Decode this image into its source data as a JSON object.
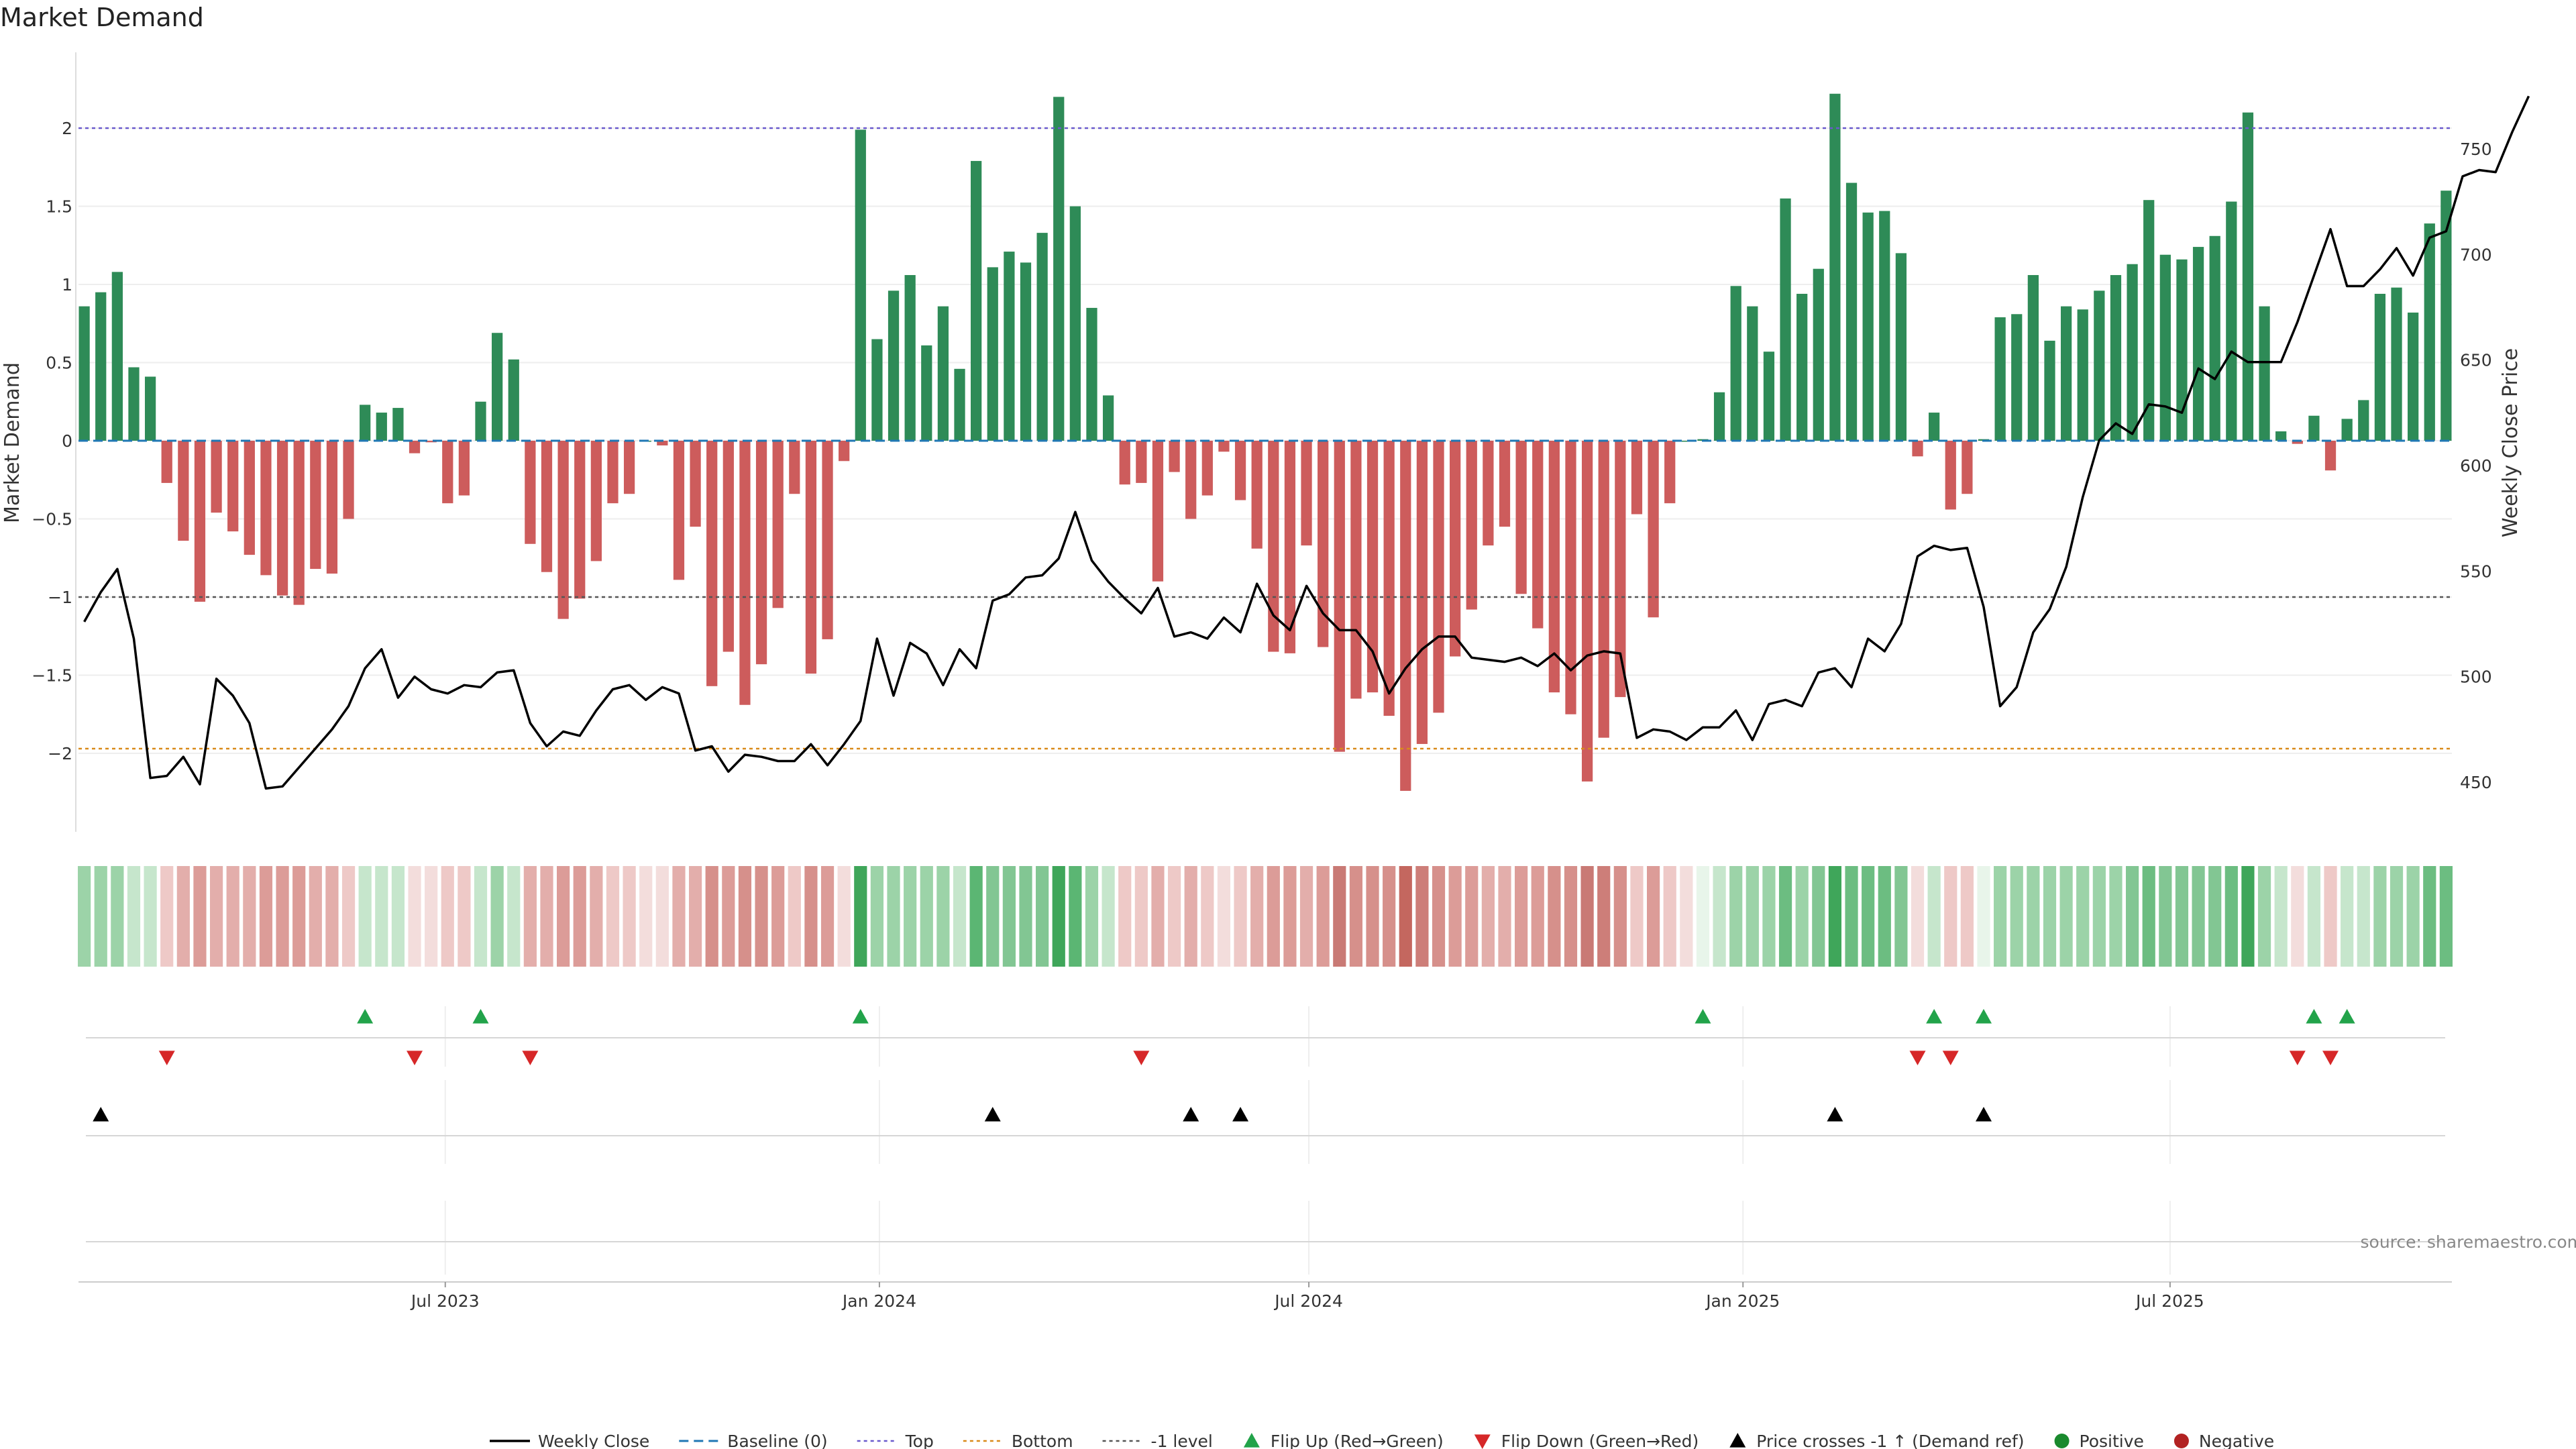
{
  "title": "Market Demand",
  "source": "source: sharemaestro.com",
  "chart_data": {
    "type": "bar",
    "title": "Market Demand",
    "ylabel": "Market Demand",
    "ylabel_right": "Weekly Close Price",
    "ylim": [
      -2.5,
      2.5
    ],
    "ylim_right": [
      430,
      780
    ],
    "yticks": [
      2,
      1.5,
      1,
      0.5,
      0,
      -0.5,
      -1,
      -1.5,
      -2
    ],
    "ytick_labels": [
      "2",
      "1.5",
      "1",
      "0.5",
      "0",
      "−0.5",
      "−1",
      "−1.5",
      "−2"
    ],
    "yticks_right": [
      750,
      700,
      650,
      600,
      550,
      500,
      450
    ],
    "x_start": "2023-01-29",
    "x_step_days": 7,
    "xtick_labels": [
      {
        "date": "2023-07-01",
        "label": "Jul 2023"
      },
      {
        "date": "2024-01-01",
        "label": "Jan 2024"
      },
      {
        "date": "2024-07-01",
        "label": "Jul 2024"
      },
      {
        "date": "2025-01-01",
        "label": "Jan 2025"
      },
      {
        "date": "2025-07-01",
        "label": "Jul 2025"
      }
    ],
    "reference_lines": {
      "top": 2,
      "bottom": -1.97,
      "minus_one": -1,
      "baseline": 0
    },
    "colors": {
      "positive": "#2e8b57",
      "negative": "#cd5c5c",
      "close": "#000000",
      "top": "#6a5acd",
      "bottom": "#d98a1a",
      "minus_one": "#555555",
      "baseline": "#1f77b4",
      "flip_up": "#22a34a",
      "flip_down": "#d62728",
      "cross": "#000000",
      "pos_marker": "#1a8a2e",
      "neg_marker": "#b22222"
    },
    "demand": [
      0.86,
      0.95,
      1.08,
      0.47,
      0.41,
      -0.27,
      -0.64,
      -1.03,
      -0.46,
      -0.58,
      -0.73,
      -0.86,
      -0.99,
      -1.05,
      -0.82,
      -0.85,
      -0.5,
      0.23,
      0.18,
      0.21,
      -0.08,
      -0.01,
      -0.4,
      -0.35,
      0.25,
      0.69,
      0.52,
      -0.66,
      -0.84,
      -1.14,
      -1.01,
      -0.77,
      -0.4,
      -0.34,
      0,
      -0.03,
      -0.89,
      -0.55,
      -1.57,
      -1.35,
      -1.69,
      -1.43,
      -1.07,
      -0.34,
      -1.49,
      -1.27,
      -0.13,
      1.99,
      0.65,
      0.96,
      1.06,
      0.61,
      0.86,
      0.46,
      1.79,
      1.11,
      1.21,
      1.14,
      1.33,
      2.2,
      1.5,
      0.85,
      0.29,
      -0.28,
      -0.27,
      -0.9,
      -0.2,
      -0.5,
      -0.35,
      -0.07,
      -0.38,
      -0.69,
      -1.35,
      -1.36,
      -0.67,
      -1.32,
      -1.99,
      -1.65,
      -1.61,
      -1.76,
      -2.24,
      -1.94,
      -1.74,
      -1.38,
      -1.08,
      -0.67,
      -0.55,
      -0.98,
      -1.2,
      -1.61,
      -1.75,
      -2.18,
      -1.9,
      -1.64,
      -0.47,
      -1.13,
      -0.4,
      0,
      0.01,
      0.31,
      0.99,
      0.86,
      0.57,
      1.55,
      0.94,
      1.1,
      2.22,
      1.65,
      1.46,
      1.47,
      1.2,
      -0.1,
      0.18,
      -0.44,
      -0.34,
      0.01,
      0.79,
      0.81,
      1.06,
      0.64,
      0.86,
      0.84,
      0.96,
      1.06,
      1.13,
      1.54,
      1.19,
      1.16,
      1.24,
      1.31,
      1.53,
      2.1,
      0.86,
      0.06,
      -0.02,
      0.16,
      -0.19,
      0.14,
      0.26,
      0.94,
      0.98,
      0.82,
      1.39,
      1.6
    ],
    "close": [
      526,
      540,
      551,
      518,
      452,
      453,
      462,
      449,
      499,
      491,
      478,
      447,
      448,
      457,
      466,
      475,
      486,
      504,
      513,
      490,
      500,
      494,
      492,
      496,
      495,
      502,
      503,
      478,
      467,
      474,
      472,
      484,
      494,
      496,
      489,
      495,
      492,
      465,
      467,
      455,
      463,
      462,
      460,
      460,
      468,
      458,
      468,
      479,
      518,
      491,
      516,
      511,
      496,
      513,
      504,
      536,
      539,
      547,
      548,
      556,
      578,
      555,
      545,
      537,
      530,
      542,
      519,
      521,
      518,
      528,
      521,
      544,
      529,
      522,
      543,
      530,
      522,
      522,
      512,
      492,
      504,
      513,
      519,
      519,
      509,
      508,
      507,
      509,
      505,
      511,
      503,
      510,
      512,
      511,
      471,
      475,
      474,
      470,
      476,
      476,
      484,
      470,
      487,
      489,
      486,
      502,
      504,
      495,
      518,
      512,
      525,
      557,
      562,
      560,
      561,
      533,
      486,
      495,
      521,
      532,
      552,
      585,
      612,
      620,
      615,
      629,
      628,
      625,
      646,
      641,
      654,
      649,
      649,
      649,
      668,
      690,
      712,
      685,
      685,
      693,
      703,
      690,
      708,
      711,
      737,
      740,
      739,
      758,
      775
    ],
    "heat_colors": [
      "#9cd3a8",
      "#9cd3a8",
      "#9cd3a8",
      "#c6e6cc",
      "#c6e6cc",
      "#eec9c7",
      "#e3aeab",
      "#dc9c98",
      "#e3aeab",
      "#e3aeab",
      "#e3aeab",
      "#dc9c98",
      "#dc9c98",
      "#dc9c98",
      "#e3aeab",
      "#e3aeab",
      "#eec9c7",
      "#c6e6cc",
      "#c6e6cc",
      "#c6e6cc",
      "#f3dddc",
      "#f3dddc",
      "#eec9c7",
      "#eec9c7",
      "#c6e6cc",
      "#9cd3a8",
      "#c6e6cc",
      "#e3aeab",
      "#e3aeab",
      "#dc9c98",
      "#dc9c98",
      "#e3aeab",
      "#eec9c7",
      "#eec9c7",
      "#f3dddc",
      "#f3dddc",
      "#e3aeab",
      "#e3aeab",
      "#d6908b",
      "#dc9c98",
      "#d6908b",
      "#d6908b",
      "#dc9c98",
      "#eec9c7",
      "#d6908b",
      "#dc9c98",
      "#f3dddc",
      "#3fa65a",
      "#9cd3a8",
      "#9cd3a8",
      "#9cd3a8",
      "#9cd3a8",
      "#9cd3a8",
      "#c6e6cc",
      "#5bb673",
      "#82c693",
      "#82c693",
      "#82c693",
      "#82c693",
      "#3fa65a",
      "#5bb673",
      "#9cd3a8",
      "#c6e6cc",
      "#eec9c7",
      "#eec9c7",
      "#e3aeab",
      "#eec9c7",
      "#e3aeab",
      "#eec9c7",
      "#f3dddc",
      "#eec9c7",
      "#e3aeab",
      "#dc9c98",
      "#dc9c98",
      "#e3aeab",
      "#dc9c98",
      "#c97a75",
      "#d6908b",
      "#d6908b",
      "#d6908b",
      "#c4675f",
      "#cd7e79",
      "#d6908b",
      "#dc9c98",
      "#dc9c98",
      "#e3aeab",
      "#e3aeab",
      "#dc9c98",
      "#dc9c98",
      "#d6908b",
      "#d6908b",
      "#c97a75",
      "#cd7e79",
      "#d6908b",
      "#eec9c7",
      "#dc9c98",
      "#eec9c7",
      "#f3dddc",
      "#e8f5ea",
      "#c6e6cc",
      "#9cd3a8",
      "#9cd3a8",
      "#9cd3a8",
      "#6cbd81",
      "#9cd3a8",
      "#82c693",
      "#3fa65a",
      "#6cbd81",
      "#6cbd81",
      "#6cbd81",
      "#82c693",
      "#f3dddc",
      "#c6e6cc",
      "#eec9c7",
      "#eec9c7",
      "#e8f5ea",
      "#9cd3a8",
      "#9cd3a8",
      "#9cd3a8",
      "#9cd3a8",
      "#9cd3a8",
      "#9cd3a8",
      "#9cd3a8",
      "#9cd3a8",
      "#82c693",
      "#6cbd81",
      "#82c693",
      "#82c693",
      "#82c693",
      "#82c693",
      "#6cbd81",
      "#3fa65a",
      "#9cd3a8",
      "#c6e6cc",
      "#f3dddc",
      "#c6e6cc",
      "#eec9c7",
      "#c6e6cc",
      "#c6e6cc",
      "#9cd3a8",
      "#9cd3a8",
      "#9cd3a8",
      "#6cbd81",
      "#6cbd81"
    ],
    "flip_up": [
      17,
      24,
      47,
      98,
      112,
      115,
      135,
      137
    ],
    "flip_down": [
      5,
      20,
      27,
      64,
      111,
      113,
      134,
      136
    ],
    "price_crosses": [
      1,
      55,
      67,
      70,
      106,
      115
    ],
    "legend": [
      {
        "key": "close",
        "label": "Weekly Close"
      },
      {
        "key": "baseline",
        "label": "Baseline (0)"
      },
      {
        "key": "top",
        "label": "Top"
      },
      {
        "key": "bottom",
        "label": "Bottom"
      },
      {
        "key": "minus_one",
        "label": "-1 level"
      },
      {
        "key": "flip_up",
        "label": "Flip Up (Red→Green)"
      },
      {
        "key": "flip_down",
        "label": "Flip Down (Green→Red)"
      },
      {
        "key": "cross",
        "label": "Price crosses -1 ↑ (Demand ref)"
      },
      {
        "key": "pos_marker",
        "label": "Positive"
      },
      {
        "key": "neg_marker",
        "label": "Negative"
      }
    ]
  }
}
